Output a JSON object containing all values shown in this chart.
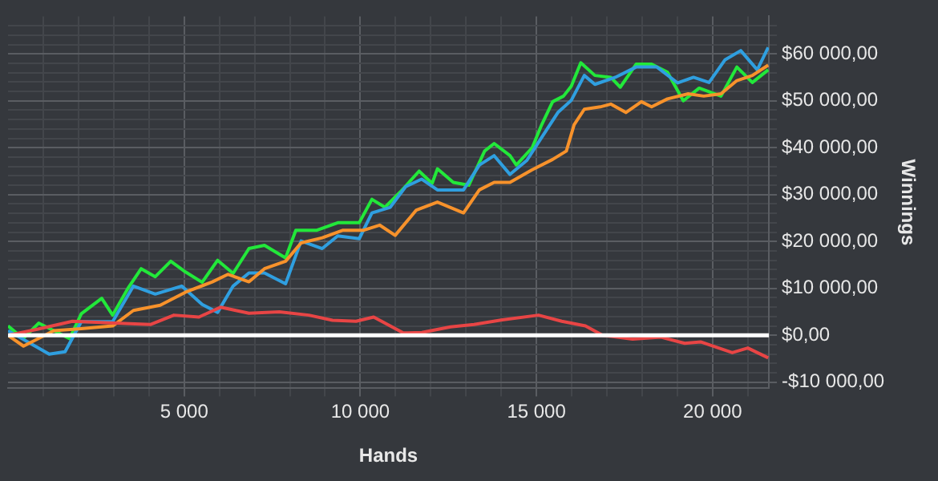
{
  "chart_data": {
    "type": "line",
    "xlabel": "Hands",
    "ylabel": "Winnings",
    "grid": true,
    "marker": "none",
    "line_style": "solid",
    "xlim": [
      0,
      21600
    ],
    "ylim": [
      -11300,
      68000
    ],
    "xticks": [
      {
        "value": 1000,
        "label": null
      },
      {
        "value": 2000,
        "label": null
      },
      {
        "value": 3000,
        "label": null
      },
      {
        "value": 4000,
        "label": null
      },
      {
        "value": 5000,
        "label": "5 000"
      },
      {
        "value": 6000,
        "label": null
      },
      {
        "value": 7000,
        "label": null
      },
      {
        "value": 8000,
        "label": null
      },
      {
        "value": 9000,
        "label": null
      },
      {
        "value": 10000,
        "label": "10 000"
      },
      {
        "value": 11000,
        "label": null
      },
      {
        "value": 12000,
        "label": null
      },
      {
        "value": 13000,
        "label": null
      },
      {
        "value": 14000,
        "label": null
      },
      {
        "value": 15000,
        "label": "15 000"
      },
      {
        "value": 16000,
        "label": null
      },
      {
        "value": 17000,
        "label": null
      },
      {
        "value": 18000,
        "label": null
      },
      {
        "value": 19000,
        "label": null
      },
      {
        "value": 20000,
        "label": "20 000"
      },
      {
        "value": 21000,
        "label": null
      }
    ],
    "yticks": [
      {
        "value": -10000,
        "label": "-$10 000,00"
      },
      {
        "value": -8000,
        "label": null
      },
      {
        "value": -6000,
        "label": null
      },
      {
        "value": -4000,
        "label": null
      },
      {
        "value": -2000,
        "label": null
      },
      {
        "value": 0,
        "label": "$0,00"
      },
      {
        "value": 2000,
        "label": null
      },
      {
        "value": 4000,
        "label": null
      },
      {
        "value": 6000,
        "label": null
      },
      {
        "value": 8000,
        "label": null
      },
      {
        "value": 10000,
        "label": "$10 000,00"
      },
      {
        "value": 12000,
        "label": null
      },
      {
        "value": 14000,
        "label": null
      },
      {
        "value": 16000,
        "label": null
      },
      {
        "value": 18000,
        "label": null
      },
      {
        "value": 20000,
        "label": "$20 000,00"
      },
      {
        "value": 22000,
        "label": null
      },
      {
        "value": 24000,
        "label": null
      },
      {
        "value": 26000,
        "label": null
      },
      {
        "value": 28000,
        "label": null
      },
      {
        "value": 30000,
        "label": "$30 000,00"
      },
      {
        "value": 32000,
        "label": null
      },
      {
        "value": 34000,
        "label": null
      },
      {
        "value": 36000,
        "label": null
      },
      {
        "value": 38000,
        "label": null
      },
      {
        "value": 40000,
        "label": "$40 000,00"
      },
      {
        "value": 42000,
        "label": null
      },
      {
        "value": 44000,
        "label": null
      },
      {
        "value": 46000,
        "label": null
      },
      {
        "value": 48000,
        "label": null
      },
      {
        "value": 50000,
        "label": "$50 000,00"
      },
      {
        "value": 52000,
        "label": null
      },
      {
        "value": 54000,
        "label": null
      },
      {
        "value": 56000,
        "label": null
      },
      {
        "value": 58000,
        "label": null
      },
      {
        "value": 60000,
        "label": "$60 000,00"
      },
      {
        "value": 62000,
        "label": null
      },
      {
        "value": 64000,
        "label": null
      },
      {
        "value": 66000,
        "label": null
      }
    ],
    "ref_lines": [
      {
        "axis": "y",
        "value": 0,
        "color": "#ffffff"
      }
    ],
    "series": [
      {
        "color": "#e84545",
        "x": [
          0,
          830,
          1830,
          3020,
          4040,
          4710,
          5420,
          6040,
          6840,
          7700,
          8540,
          9210,
          9880,
          10380,
          11220,
          11750,
          12560,
          13230,
          14030,
          15060,
          15720,
          16390,
          16880,
          17730,
          18540,
          19210,
          19660,
          20560,
          21000,
          21580
        ],
        "values": [
          0,
          1300,
          3000,
          2600,
          2300,
          4300,
          3900,
          6000,
          4700,
          5000,
          4300,
          3200,
          3000,
          3900,
          500,
          600,
          1800,
          2300,
          3300,
          4300,
          3000,
          2000,
          0,
          -800,
          -400,
          -1700,
          -1400,
          -3700,
          -2700,
          -4800
        ]
      },
      {
        "color": "#f7922b",
        "x": [
          0,
          440,
          1300,
          2080,
          2970,
          3560,
          4320,
          5040,
          5800,
          6240,
          6840,
          7280,
          7880,
          8320,
          8920,
          9510,
          10100,
          10550,
          10990,
          11590,
          12190,
          12930,
          13380,
          13800,
          14250,
          14880,
          15460,
          15850,
          16070,
          16360,
          16810,
          17110,
          17540,
          17980,
          18270,
          18720,
          19310,
          19750,
          20240,
          20690,
          21130,
          21580
        ],
        "values": [
          0,
          -2300,
          1000,
          1400,
          2000,
          5300,
          6400,
          9200,
          11400,
          13000,
          11400,
          14200,
          15800,
          19700,
          20800,
          22400,
          22400,
          23500,
          21300,
          26700,
          28400,
          26100,
          31000,
          32600,
          32600,
          35300,
          37500,
          39300,
          44900,
          48200,
          48700,
          49300,
          47500,
          49800,
          48700,
          50400,
          51500,
          51000,
          51500,
          54300,
          55400,
          57600
        ]
      },
      {
        "color": "#2f9fe0",
        "x": [
          0,
          1170,
          1620,
          2080,
          2970,
          3560,
          4180,
          4930,
          5510,
          5950,
          6390,
          6840,
          7280,
          7880,
          8320,
          8920,
          9360,
          9970,
          10330,
          10850,
          11290,
          11740,
          12190,
          12930,
          13380,
          13800,
          14250,
          14730,
          15150,
          15610,
          15990,
          16360,
          16660,
          17240,
          17830,
          18420,
          19010,
          19460,
          19900,
          20350,
          20800,
          21270,
          21580
        ],
        "values": [
          1000,
          -4000,
          -3500,
          2900,
          2900,
          10500,
          8800,
          10500,
          6600,
          4900,
          10500,
          13300,
          13300,
          11000,
          20100,
          18500,
          21200,
          20600,
          26100,
          27300,
          31700,
          33300,
          31000,
          31000,
          36300,
          38300,
          34300,
          37300,
          42200,
          47500,
          50100,
          55400,
          53500,
          55000,
          57200,
          57200,
          53800,
          55000,
          53900,
          58700,
          60700,
          56600,
          61400
        ]
      },
      {
        "color": "#22e83a",
        "x": [
          0,
          430,
          870,
          1300,
          1750,
          2080,
          2660,
          2970,
          3420,
          3780,
          4180,
          4620,
          5040,
          5510,
          5950,
          6390,
          6840,
          7280,
          7880,
          8170,
          8770,
          9360,
          9970,
          10330,
          10700,
          11140,
          11670,
          12040,
          12190,
          12640,
          13080,
          13530,
          13800,
          14250,
          14430,
          14880,
          15150,
          15460,
          15770,
          15990,
          16260,
          16660,
          17110,
          17380,
          17830,
          18270,
          18720,
          19170,
          19620,
          20240,
          20690,
          21130,
          21580
        ],
        "values": [
          2000,
          -700,
          2600,
          1000,
          -700,
          4600,
          7900,
          4300,
          10200,
          14200,
          12500,
          15800,
          13500,
          11300,
          16000,
          13200,
          18500,
          19200,
          16500,
          22400,
          22400,
          24000,
          24000,
          29000,
          27300,
          30600,
          35000,
          32400,
          35500,
          32600,
          32000,
          39300,
          40900,
          38300,
          36300,
          40000,
          44900,
          49800,
          51000,
          53100,
          58100,
          55400,
          55000,
          52900,
          57800,
          57800,
          56100,
          50000,
          52700,
          51000,
          57200,
          53900,
          56600
        ]
      }
    ]
  }
}
